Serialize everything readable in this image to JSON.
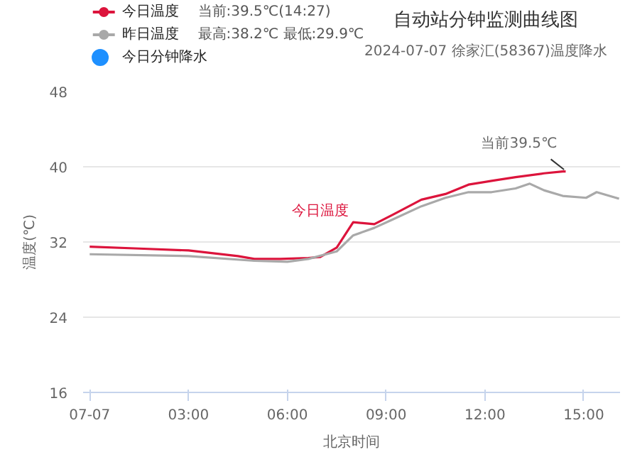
{
  "chart_data": {
    "type": "line",
    "title": "自动站分钟监测曲线图",
    "subtitle": "2024-07-07 徐家汇(58367)温度降水",
    "xlabel": "北京时间",
    "ylabel": "温度(℃)",
    "xlim": [
      -0.2,
      16.1
    ],
    "xticks": [
      {
        "value": 0,
        "label": "07-07"
      },
      {
        "value": 3,
        "label": "03:00"
      },
      {
        "value": 6,
        "label": "06:00"
      },
      {
        "value": 9,
        "label": "09:00"
      },
      {
        "value": 12,
        "label": "12:00"
      },
      {
        "value": 15,
        "label": "15:00"
      }
    ],
    "ylim": [
      16,
      48
    ],
    "yticks": [
      16,
      24,
      32,
      40,
      48
    ],
    "grid": "y",
    "legend": "top left",
    "series": [
      {
        "name": "今日温度",
        "color": "#dc143c",
        "x": [
          0,
          1.5,
          3,
          4.5,
          5,
          5.79,
          6.64,
          7.0,
          7.5,
          8.0,
          8.64,
          9.2,
          10.07,
          10.8,
          11.5,
          12.2,
          12.93,
          13.79,
          14.36,
          14.45
        ],
        "values": [
          31.5,
          31.3,
          31.1,
          30.5,
          30.2,
          30.2,
          30.3,
          30.4,
          31.4,
          34.1,
          33.9,
          34.9,
          36.5,
          37.1,
          38.1,
          38.5,
          38.9,
          39.3,
          39.5,
          39.5
        ]
      },
      {
        "name": "昨日温度",
        "color": "#a9a9a9",
        "x": [
          0,
          3,
          5,
          6,
          6.64,
          7.5,
          8.0,
          8.64,
          9.2,
          10.07,
          10.8,
          11.5,
          12.2,
          12.93,
          13.36,
          13.79,
          14.36,
          15.07,
          15.39,
          16.07
        ],
        "values": [
          30.7,
          30.5,
          30.0,
          29.9,
          30.2,
          31.0,
          32.7,
          33.5,
          34.4,
          35.8,
          36.7,
          37.3,
          37.3,
          37.7,
          38.2,
          37.5,
          36.9,
          36.7,
          37.3,
          36.6
        ]
      },
      {
        "name": "今日分钟降水",
        "color": "#1e90ff",
        "type": "scatter"
      }
    ],
    "annotations": [
      "当前:39.5℃(14:27)",
      "最高:38.2℃ 最低:29.9℃",
      "今日温度",
      {
        "text": "当前39.5℃",
        "x": 14.45,
        "y": 39.5
      }
    ]
  }
}
